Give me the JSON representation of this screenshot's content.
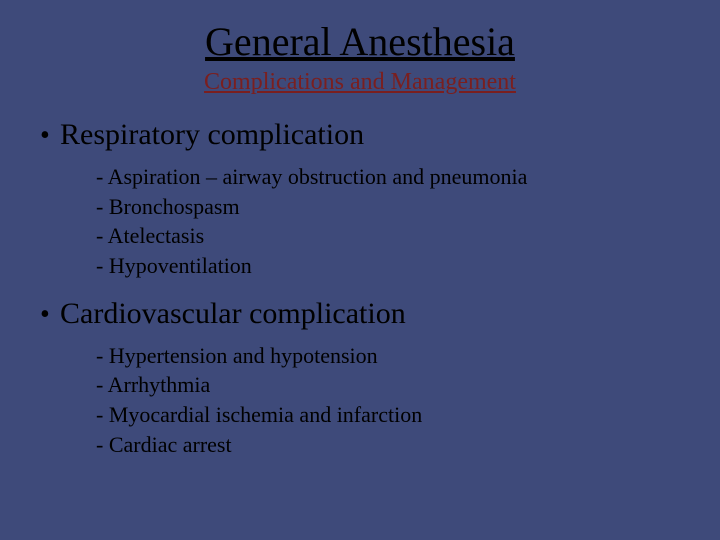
{
  "colors": {
    "background": "#3e4a7a",
    "text": "#000000",
    "subtitle": "#7a1f1f"
  },
  "typography": {
    "family": "Times New Roman",
    "title_fontsize": 40,
    "subtitle_fontsize": 24,
    "bullet_fontsize": 30,
    "subitem_fontsize": 22
  },
  "title": "General Anesthesia",
  "subtitle": "Complications and Management",
  "sections": [
    {
      "heading": "Respiratory complication",
      "items": [
        "- Aspiration – airway obstruction and pneumonia",
        "- Bronchospasm",
        "- Atelectasis",
        "- Hypoventilation"
      ]
    },
    {
      "heading": "Cardiovascular complication",
      "items": [
        "- Hypertension and hypotension",
        "- Arrhythmia",
        "- Myocardial ischemia and infarction",
        "- Cardiac arrest"
      ]
    }
  ]
}
